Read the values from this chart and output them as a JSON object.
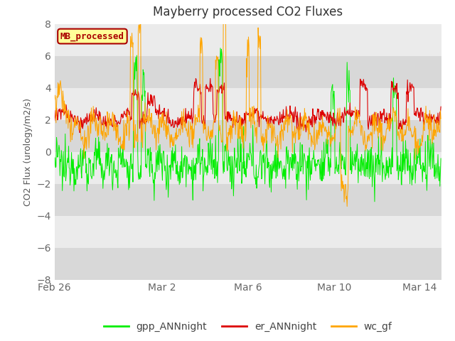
{
  "title": "Mayberry processed CO2 Fluxes",
  "ylabel": "CO2 Flux (urology/m2/s)",
  "ylim": [
    -8,
    8
  ],
  "yticks": [
    -8,
    -6,
    -4,
    -2,
    0,
    2,
    4,
    6,
    8
  ],
  "xtick_labels": [
    "Feb 26",
    "Mar 2",
    "Mar 6",
    "Mar 10",
    "Mar 14"
  ],
  "gpp_color": "#00EE00",
  "er_color": "#DD0000",
  "wc_color": "#FFA500",
  "legend_labels": [
    "gpp_ANNnight",
    "er_ANNnight",
    "wc_gf"
  ],
  "inset_label": "MB_processed",
  "inset_color": "#AA0000",
  "inset_bg": "#FFFF99",
  "background_light": "#EBEBEB",
  "background_dark": "#D8D8D8",
  "n_points": 800
}
